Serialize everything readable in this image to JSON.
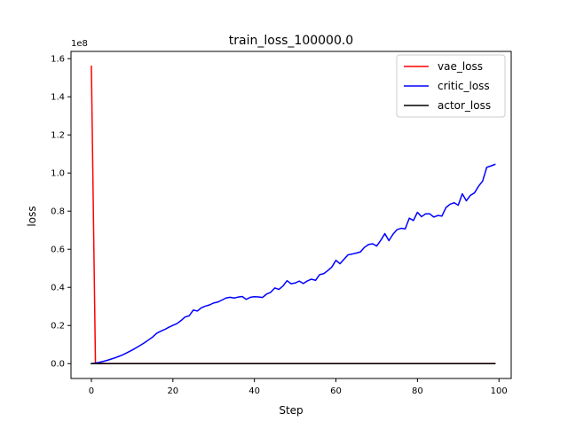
{
  "chart_data": {
    "type": "line",
    "title": "train_loss_100000.0",
    "xlabel": "Step",
    "ylabel": "loss",
    "y_offset_label": "1e8",
    "y_scale_factor": 100000000,
    "xlim": [
      -5,
      103
    ],
    "ylim": [
      -7800000,
      163800000
    ],
    "x_ticks": [
      0,
      20,
      40,
      60,
      80,
      100
    ],
    "x_tick_labels": [
      "0",
      "20",
      "40",
      "60",
      "80",
      "100"
    ],
    "y_ticks": [
      0,
      20000000,
      40000000,
      60000000,
      80000000,
      100000000,
      120000000,
      140000000,
      160000000
    ],
    "y_tick_labels": [
      "0.0",
      "0.2",
      "0.4",
      "0.6",
      "0.8",
      "1.0",
      "1.2",
      "1.4",
      "1.6"
    ],
    "grid": false,
    "legend_position": "top-right",
    "series": [
      {
        "name": "vae_loss",
        "color": "#ff0000",
        "x": [
          0,
          1,
          2,
          3,
          4,
          5,
          6,
          7,
          8,
          9,
          10,
          11,
          12,
          13,
          14,
          15,
          16,
          17,
          18,
          19,
          20,
          21,
          22,
          23,
          24,
          25,
          26,
          27,
          28,
          29,
          30,
          31,
          32,
          33,
          34,
          35,
          36,
          37,
          38,
          39,
          40,
          41,
          42,
          43,
          44,
          45,
          46,
          47,
          48,
          49,
          50,
          51,
          52,
          53,
          54,
          55,
          56,
          57,
          58,
          59,
          60,
          61,
          62,
          63,
          64,
          65,
          66,
          67,
          68,
          69,
          70,
          71,
          72,
          73,
          74,
          75,
          76,
          77,
          78,
          79,
          80,
          81,
          82,
          83,
          84,
          85,
          86,
          87,
          88,
          89,
          90,
          91,
          92,
          93,
          94,
          95,
          96,
          97,
          98,
          99
        ],
        "y": [
          156000000,
          150000,
          100000,
          80000,
          70000,
          60000,
          55000,
          50000,
          48000,
          46000,
          44000,
          42000,
          40000,
          38000,
          36000,
          35000,
          34000,
          33000,
          32000,
          31000,
          30000,
          30000,
          30000,
          30000,
          30000,
          30000,
          30000,
          30000,
          30000,
          30000,
          30000,
          30000,
          30000,
          30000,
          30000,
          30000,
          30000,
          30000,
          30000,
          30000,
          30000,
          30000,
          30000,
          30000,
          30000,
          30000,
          30000,
          30000,
          30000,
          30000,
          30000,
          30000,
          30000,
          30000,
          30000,
          30000,
          30000,
          30000,
          30000,
          30000,
          30000,
          30000,
          30000,
          30000,
          30000,
          30000,
          30000,
          30000,
          30000,
          30000,
          30000,
          30000,
          30000,
          30000,
          30000,
          30000,
          30000,
          30000,
          30000,
          30000,
          30000,
          30000,
          30000,
          30000,
          30000,
          30000,
          30000,
          30000,
          30000,
          30000,
          30000,
          30000,
          30000,
          30000,
          30000,
          30000,
          30000,
          30000,
          30000,
          30000
        ]
      },
      {
        "name": "critic_loss",
        "color": "#0000ff",
        "x": [
          0,
          1,
          2,
          3,
          4,
          5,
          6,
          7,
          8,
          9,
          10,
          11,
          12,
          13,
          14,
          15,
          16,
          17,
          18,
          19,
          20,
          21,
          22,
          23,
          24,
          25,
          26,
          27,
          28,
          29,
          30,
          31,
          32,
          33,
          34,
          35,
          36,
          37,
          38,
          39,
          40,
          41,
          42,
          43,
          44,
          45,
          46,
          47,
          48,
          49,
          50,
          51,
          52,
          53,
          54,
          55,
          56,
          57,
          58,
          59,
          60,
          61,
          62,
          63,
          64,
          65,
          66,
          67,
          68,
          69,
          70,
          71,
          72,
          73,
          74,
          75,
          76,
          77,
          78,
          79,
          80,
          81,
          82,
          83,
          84,
          85,
          86,
          87,
          88,
          89,
          90,
          91,
          92,
          93,
          94,
          95,
          96,
          97,
          98,
          99
        ],
        "y": [
          0,
          300000,
          700000,
          1200000,
          1800000,
          2500000,
          3200000,
          4000000,
          4900000,
          6000000,
          7100000,
          8300000,
          9600000,
          10900000,
          12400000,
          13900000,
          15900000,
          17000000,
          17900000,
          19100000,
          20100000,
          21000000,
          22600000,
          24500000,
          25100000,
          28100000,
          27600000,
          29300000,
          30200000,
          30800000,
          31800000,
          32300000,
          33300000,
          34400000,
          34800000,
          34400000,
          34900000,
          35200000,
          33700000,
          34800000,
          35100000,
          35000000,
          34700000,
          36500000,
          37400000,
          39700000,
          38900000,
          40700000,
          43500000,
          41900000,
          42300000,
          43300000,
          42000000,
          43400000,
          44300000,
          43700000,
          46700000,
          47200000,
          48800000,
          50700000,
          54200000,
          52400000,
          54800000,
          57100000,
          57500000,
          58000000,
          58600000,
          61000000,
          62500000,
          62900000,
          61700000,
          64700000,
          68200000,
          64500000,
          67900000,
          70300000,
          71000000,
          70700000,
          76300000,
          75100000,
          79400000,
          77100000,
          78600000,
          78600000,
          76900000,
          77700000,
          77400000,
          81900000,
          83600000,
          84400000,
          83100000,
          89100000,
          85400000,
          88300000,
          89600000,
          93100000,
          95800000,
          103000000,
          103700000,
          104500000
        ]
      },
      {
        "name": "actor_loss",
        "color": "#000000",
        "x": [
          0,
          1,
          2,
          3,
          4,
          5,
          6,
          7,
          8,
          9,
          10,
          11,
          12,
          13,
          14,
          15,
          16,
          17,
          18,
          19,
          20,
          21,
          22,
          23,
          24,
          25,
          26,
          27,
          28,
          29,
          30,
          31,
          32,
          33,
          34,
          35,
          36,
          37,
          38,
          39,
          40,
          41,
          42,
          43,
          44,
          45,
          46,
          47,
          48,
          49,
          50,
          51,
          52,
          53,
          54,
          55,
          56,
          57,
          58,
          59,
          60,
          61,
          62,
          63,
          64,
          65,
          66,
          67,
          68,
          69,
          70,
          71,
          72,
          73,
          74,
          75,
          76,
          77,
          78,
          79,
          80,
          81,
          82,
          83,
          84,
          85,
          86,
          87,
          88,
          89,
          90,
          91,
          92,
          93,
          94,
          95,
          96,
          97,
          98,
          99
        ],
        "y": [
          0,
          0,
          0,
          0,
          0,
          0,
          0,
          0,
          0,
          0,
          0,
          0,
          0,
          0,
          0,
          0,
          0,
          0,
          0,
          0,
          0,
          0,
          0,
          0,
          0,
          0,
          0,
          0,
          0,
          0,
          0,
          0,
          0,
          0,
          0,
          0,
          0,
          0,
          0,
          0,
          0,
          0,
          0,
          0,
          0,
          0,
          0,
          0,
          0,
          0,
          0,
          0,
          0,
          0,
          0,
          0,
          0,
          0,
          0,
          0,
          0,
          0,
          0,
          0,
          0,
          0,
          0,
          0,
          0,
          0,
          0,
          0,
          0,
          0,
          0,
          0,
          0,
          0,
          0,
          0,
          0,
          0,
          0,
          0,
          0,
          0,
          0,
          0,
          0,
          0,
          0,
          0,
          0,
          0,
          0,
          0,
          0,
          0,
          0,
          0
        ]
      }
    ]
  }
}
